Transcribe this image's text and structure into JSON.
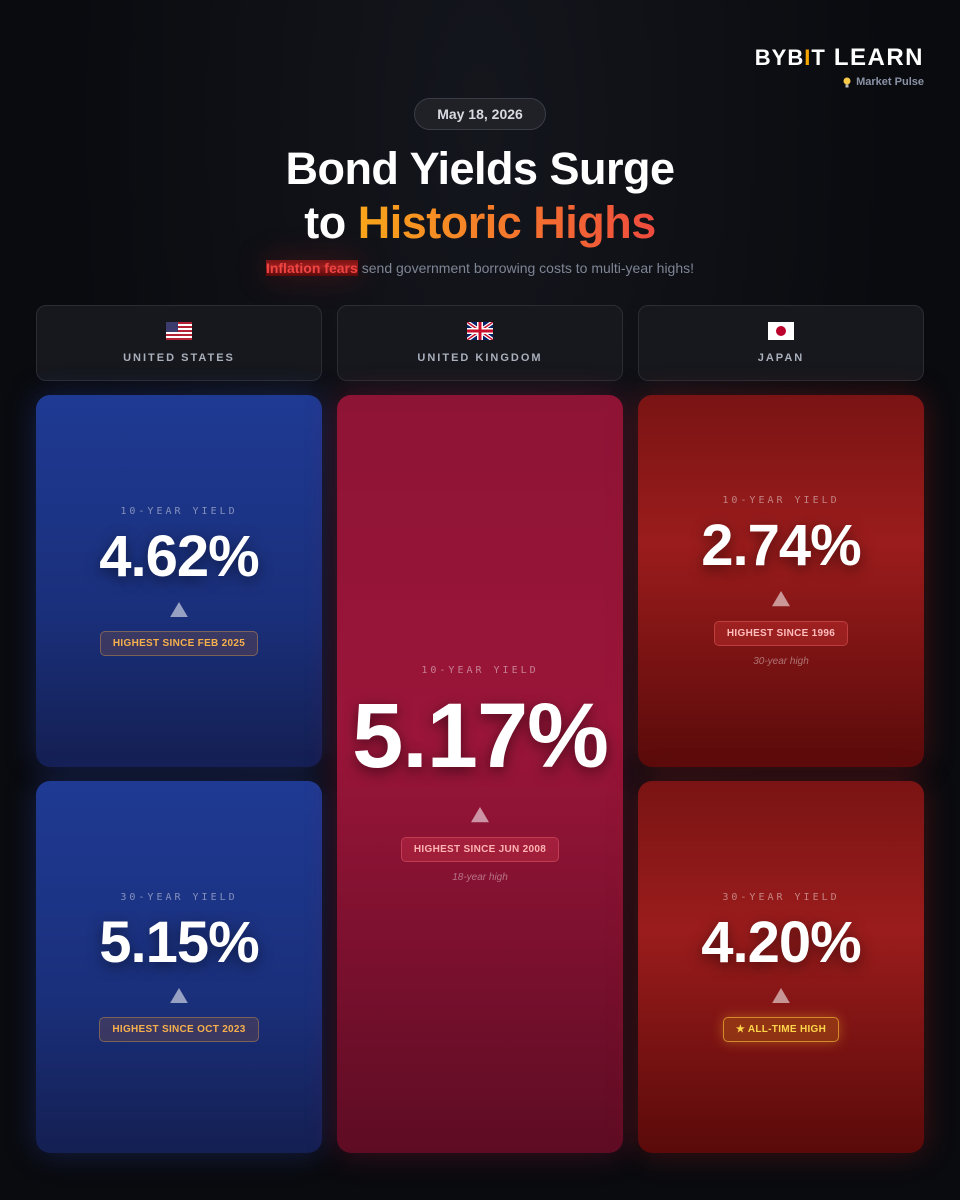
{
  "brand": {
    "logo": [
      "BYB",
      "I",
      "T"
    ],
    "product": "LEARN",
    "tagline": "Market Pulse"
  },
  "date": "May 18, 2026",
  "title": {
    "line1": "Bond Yields Surge",
    "line2_plain": "to",
    "line2_highlight": "Historic Highs"
  },
  "subtitle": {
    "highlight": "Inflation fears",
    "rest": "send government borrowing costs to multi-year highs!"
  },
  "columns": [
    {
      "name": "UNITED STATES",
      "cards": [
        {
          "label": "10-YEAR YIELD",
          "value": "4.62%",
          "badge": "HIGHEST SINCE FEB 2025"
        },
        {
          "label": "30-YEAR YIELD",
          "value": "5.15%",
          "badge": "HIGHEST SINCE OCT 2023"
        }
      ]
    },
    {
      "name": "UNITED KINGDOM",
      "cards": [
        {
          "label": "10-YEAR YIELD",
          "value": "5.17%",
          "badge": "HIGHEST SINCE JUN 2008",
          "note": "18-year high"
        }
      ]
    },
    {
      "name": "JAPAN",
      "cards": [
        {
          "label": "10-YEAR YIELD",
          "value": "2.74%",
          "badge": "HIGHEST SINCE 1996",
          "note": "30-year high"
        },
        {
          "label": "30-YEAR YIELD",
          "value": "4.20%",
          "badge": "★ ALL-TIME HIGH"
        }
      ]
    }
  ]
}
